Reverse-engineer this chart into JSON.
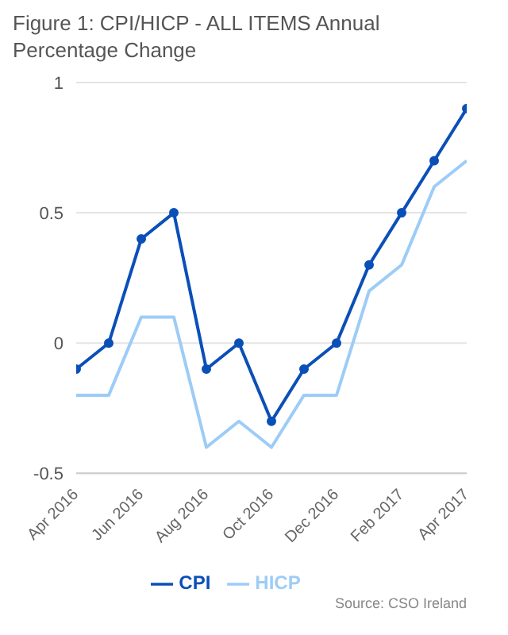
{
  "chart_data": {
    "type": "line",
    "title": "Figure 1: CPI/HICP - ALL ITEMS Annual Percentage Change",
    "categories": [
      "Apr 2016",
      null,
      "Jun 2016",
      null,
      "Aug 2016",
      null,
      "Oct 2016",
      null,
      "Dec 2016",
      null,
      "Feb 2017",
      null,
      "Apr 2017"
    ],
    "series": [
      {
        "name": "CPI",
        "color": "#0b4fb8",
        "marker": "circle",
        "values": [
          -0.1,
          0,
          0.4,
          0.5,
          -0.1,
          0,
          -0.3,
          -0.1,
          0,
          0.3,
          0.5,
          0.7,
          0.9
        ]
      },
      {
        "name": "HICP",
        "color": "#9dccf7",
        "marker": "none",
        "values": [
          -0.2,
          -0.2,
          0.1,
          0.1,
          -0.4,
          -0.3,
          -0.4,
          -0.2,
          -0.2,
          0.2,
          0.3,
          0.6,
          0.7
        ]
      }
    ],
    "ylim": [
      -0.5,
      1
    ],
    "yticks": [
      -0.5,
      0,
      0.5,
      1
    ],
    "grid": "y",
    "legend": "bottom",
    "annotations": [
      "Source: CSO Ireland"
    ]
  }
}
